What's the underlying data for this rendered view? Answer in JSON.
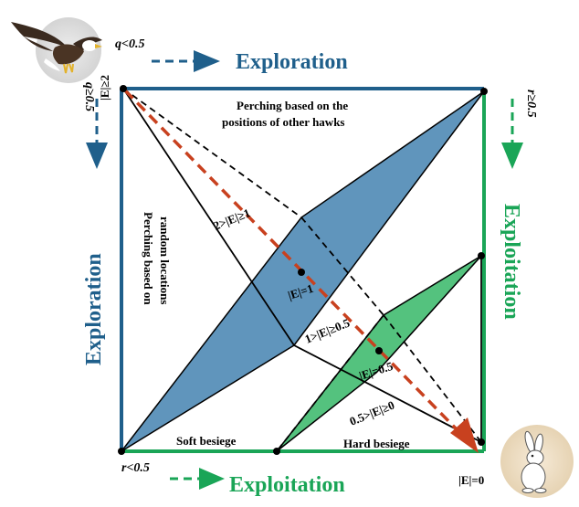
{
  "labels": {
    "exploration_top": "Exploration",
    "exploration_left": "Exploration",
    "exploitation_right": "Exploitation",
    "exploitation_bottom": "Exploitation",
    "cond_q_lt": "q<0.5",
    "cond_q_ge": "q≥0.5",
    "cond_r_ge": "r≥0.5",
    "cond_r_lt": "r<0.5",
    "perch_others_line1": "Perching based on the",
    "perch_others_line2": "positions of other hawks",
    "perch_random_line1": "Perching based on",
    "perch_random_line2": "random locations",
    "soft_besiege": "Soft besiege",
    "hard_besiege": "Hard besiege"
  },
  "energy": {
    "e_ge2": "|E|≥2",
    "e_2to1": "2>|E|≥1",
    "e_eq1": "|E|=1",
    "e_1to05": "1>|E|≥0.5",
    "e_eq05": "|E|=0.5",
    "e_05to0": "0.5>|E|≥0",
    "e_eq0": "|E|=0"
  },
  "icons": {
    "hawk": "eagle-icon",
    "prey": "rabbit-icon"
  },
  "colors": {
    "exploration": "#1f5f8b",
    "exploitation": "#1aa557",
    "blue_region": "#4a86b3",
    "green_region": "#3cba6c",
    "arrow": "#c8411f"
  }
}
